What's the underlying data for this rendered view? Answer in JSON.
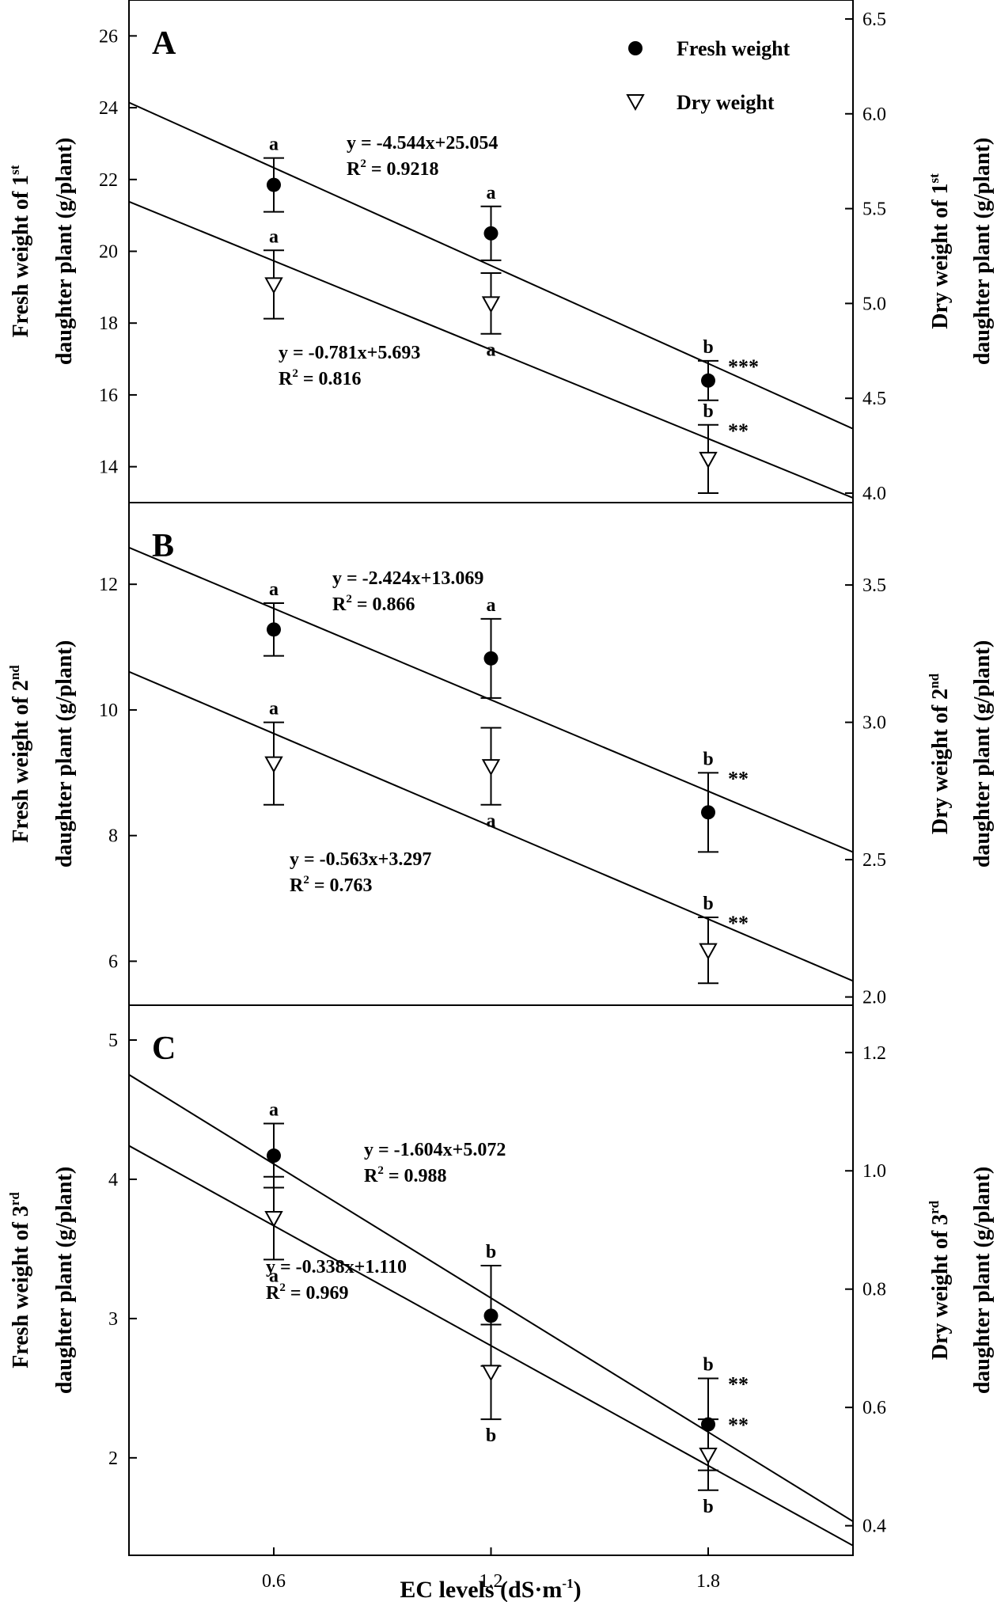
{
  "chart_data": {
    "type": "scatter",
    "xlabel": "EC levels (dS·m",
    "xlabel_sup": "-1",
    "xlabel_end": ")",
    "x_ticks": [
      "0.6",
      "1.2",
      "1.8"
    ],
    "xlim": [
      0.2,
      2.2
    ],
    "legend": {
      "position": "top-right",
      "entries": [
        {
          "label": "Fresh weight",
          "marker": "filled-circle"
        },
        {
          "label": "Dry weight",
          "marker": "open-triangle-down"
        }
      ]
    },
    "panels": [
      {
        "letter": "A",
        "left_ylim": [
          13,
          27
        ],
        "right_ylim": [
          3.95,
          6.6
        ],
        "left_ticks": [
          "14",
          "16",
          "18",
          "20",
          "22",
          "24",
          "26"
        ],
        "right_ticks": [
          "4.0",
          "4.5",
          "5.0",
          "5.5",
          "6.0",
          "6.5"
        ],
        "left_label": [
          "Fresh weight of 1",
          "st",
          "daughter plant (g/plant)"
        ],
        "right_label": [
          "Dry weight of 1",
          "st",
          "daughter plant (g/plant)"
        ],
        "series": [
          {
            "name": "Fresh weight",
            "axis": "left",
            "x": [
              0.6,
              1.2,
              1.8
            ],
            "y": [
              21.85,
              20.5,
              16.4
            ],
            "err": [
              0.75,
              0.75,
              0.55
            ],
            "letters": [
              "a",
              "a",
              "b"
            ],
            "letter_pos": [
              "above",
              "above",
              "above"
            ],
            "fit": {
              "slope": -4.544,
              "intercept": 25.054
            },
            "equation": "y = -4.544x+25.054",
            "r2_prefix": "R",
            "r2_sup": "2",
            "r2_value": " = 0.9218",
            "stars": "***"
          },
          {
            "name": "Dry weight",
            "axis": "right",
            "x": [
              0.6,
              1.2,
              1.8
            ],
            "y": [
              5.1,
              5.0,
              4.18
            ],
            "err": [
              0.18,
              0.16,
              0.18
            ],
            "letters": [
              "a",
              "a",
              "b"
            ],
            "letter_pos": [
              "above",
              "below",
              "above"
            ],
            "fit": {
              "slope": -0.781,
              "intercept": 5.693
            },
            "equation": "y = -0.781x+5.693",
            "r2_prefix": "R",
            "r2_sup": "2",
            "r2_value": " = 0.816",
            "stars": "**"
          }
        ]
      },
      {
        "letter": "B",
        "left_ylim": [
          5.3,
          13.3
        ],
        "right_ylim": [
          1.97,
          3.8
        ],
        "left_ticks": [
          "6",
          "8",
          "10",
          "12"
        ],
        "right_ticks": [
          "2.0",
          "2.5",
          "3.0",
          "3.5"
        ],
        "left_label": [
          "Fresh weight of 2",
          "nd",
          "daughter plant (g/plant)"
        ],
        "right_label": [
          "Dry weight of 2",
          "nd",
          "daughter plant (g/plant)"
        ],
        "series": [
          {
            "name": "Fresh weight",
            "axis": "left",
            "x": [
              0.6,
              1.2,
              1.8
            ],
            "y": [
              11.28,
              10.82,
              8.37
            ],
            "err": [
              0.42,
              0.63,
              0.63
            ],
            "letters": [
              "a",
              "a",
              "b"
            ],
            "letter_pos": [
              "above",
              "above",
              "above"
            ],
            "fit": {
              "slope": -2.424,
              "intercept": 13.069
            },
            "equation": "y = -2.424x+13.069",
            "r2_prefix": "R",
            "r2_sup": "2",
            "r2_value": " = 0.866",
            "stars": "**"
          },
          {
            "name": "Dry weight",
            "axis": "right",
            "x": [
              0.6,
              1.2,
              1.8
            ],
            "y": [
              2.85,
              2.84,
              2.17
            ],
            "err": [
              0.15,
              0.14,
              0.12
            ],
            "letters": [
              "a",
              "a",
              "b"
            ],
            "letter_pos": [
              "above",
              "below",
              "above"
            ],
            "fit": {
              "slope": -0.563,
              "intercept": 3.297
            },
            "equation": "y = -0.563x+3.297",
            "r2_prefix": "R",
            "r2_sup": "2",
            "r2_value": " = 0.763",
            "stars": "**"
          }
        ]
      },
      {
        "letter": "C",
        "left_ylim": [
          1.3,
          5.25
        ],
        "right_ylim": [
          0.35,
          1.28
        ],
        "left_ticks": [
          "2",
          "3",
          "4",
          "5"
        ],
        "right_ticks": [
          "0.4",
          "0.6",
          "0.8",
          "1.0",
          "1.2"
        ],
        "left_label": [
          "Fresh weight of 3",
          "rd",
          "daughter plant (g/plant)"
        ],
        "right_label": [
          "Dry weight of 3",
          "rd",
          "daughter plant (g/plant)"
        ],
        "series": [
          {
            "name": "Fresh weight",
            "axis": "left",
            "x": [
              0.6,
              1.2,
              1.8
            ],
            "y": [
              4.17,
              3.02,
              2.24
            ],
            "err": [
              0.23,
              0.36,
              0.33
            ],
            "letters": [
              "a",
              "b",
              "b"
            ],
            "letter_pos": [
              "above",
              "above",
              "above"
            ],
            "fit": {
              "slope": -1.604,
              "intercept": 5.072
            },
            "equation": "y = -1.604x+5.072",
            "r2_prefix": "R",
            "r2_sup": "2",
            "r2_value": " = 0.988",
            "stars": "**"
          },
          {
            "name": "Dry weight",
            "axis": "right",
            "x": [
              0.6,
              1.2,
              1.8
            ],
            "y": [
              0.92,
              0.66,
              0.52
            ],
            "err": [
              0.07,
              0.08,
              0.06
            ],
            "letters": [
              "a",
              "b",
              "b"
            ],
            "letter_pos": [
              "below",
              "below",
              "below"
            ],
            "fit": {
              "slope": -0.338,
              "intercept": 1.11
            },
            "equation": "y = -0.338x+1.110",
            "r2_prefix": "R",
            "r2_sup": "2",
            "r2_value": " = 0.969",
            "stars": "**"
          }
        ]
      }
    ]
  }
}
